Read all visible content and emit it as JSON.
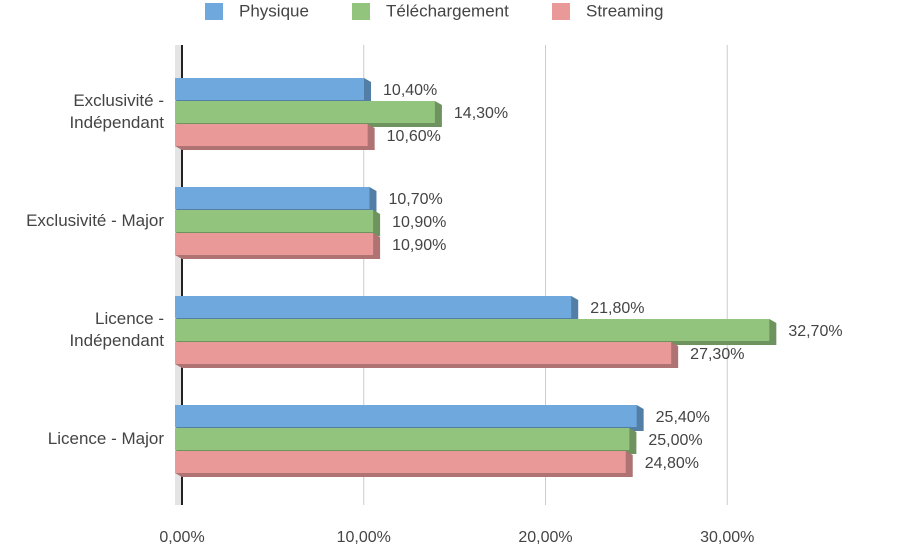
{
  "chart_data": {
    "type": "bar",
    "orientation": "horizontal",
    "categories": [
      "Exclusivité - Indépendant",
      "Exclusivité - Major",
      "Licence - Indépendant",
      "Licence - Major"
    ],
    "series": [
      {
        "name": "Physique",
        "color": "#6fa8dc",
        "values": [
          10.4,
          10.7,
          21.8,
          25.4
        ],
        "value_labels": [
          "10,40%",
          "10,70%",
          "21,80%",
          "25,40%"
        ]
      },
      {
        "name": "Téléchargement",
        "color": "#93c47d",
        "values": [
          14.3,
          10.9,
          32.7,
          25.0
        ],
        "value_labels": [
          "14,30%",
          "10,90%",
          "32,70%",
          "25,00%"
        ]
      },
      {
        "name": "Streaming",
        "color": "#ea9999",
        "values": [
          10.6,
          10.9,
          27.3,
          24.8
        ],
        "value_labels": [
          "10,60%",
          "10,90%",
          "27,30%",
          "24,80%"
        ]
      }
    ],
    "xlim": [
      0,
      40
    ],
    "xticks": [
      {
        "value": 0,
        "label": "0,00%"
      },
      {
        "value": 10,
        "label": "10,00%"
      },
      {
        "value": 20,
        "label": "20,00%"
      },
      {
        "value": 30,
        "label": "30,00%"
      }
    ],
    "grid": true,
    "legend": "top"
  }
}
